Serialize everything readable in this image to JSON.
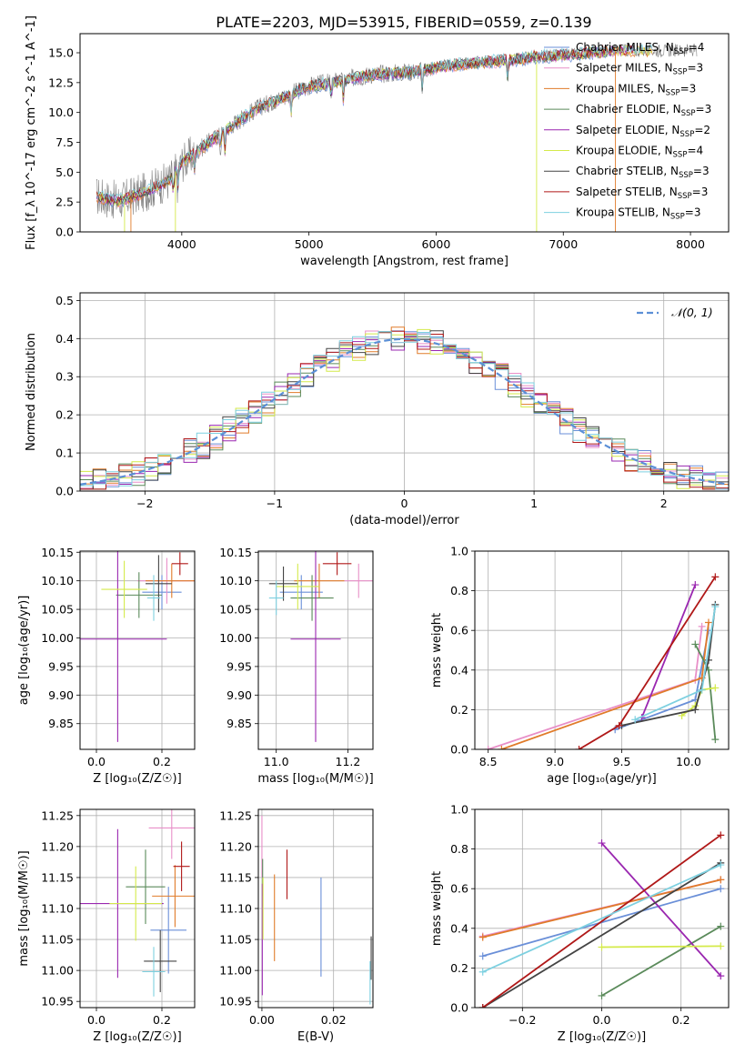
{
  "figure_title": "PLATE=2203, MJD=53915, FIBERID=0559, z=0.139",
  "colors": {
    "Chabrier MILES": "#6a8fd8",
    "Salpeter MILES": "#e88fc8",
    "Kroupa MILES": "#e07b2a",
    "Chabrier ELODIE": "#5a8a5a",
    "Salpeter ELODIE": "#9a27b0",
    "Kroupa ELODIE": "#d4ea4a",
    "Chabrier STELIB": "#444444",
    "Salpeter STELIB": "#b01818",
    "Kroupa STELIB": "#7dd0e0",
    "data": "#808080"
  },
  "chart_data": [
    {
      "type": "line",
      "id": "spectrum",
      "title": "PLATE=2203, MJD=53915, FIBERID=0559, z=0.139",
      "xlabel": "wavelength [Angstrom, rest frame]",
      "ylabel": "Flux [f_λ 10^-17 erg cm^-2 s^-1 A^-1]",
      "xlim": [
        3200,
        8300
      ],
      "ylim": [
        0,
        16.6
      ],
      "xticks": [
        "4000",
        "5000",
        "6000",
        "7000",
        "8000"
      ],
      "yticks": [
        "0.0",
        "2.5",
        "5.0",
        "7.5",
        "10.0",
        "12.5",
        "15.0"
      ],
      "grid": false,
      "legend_placement": "top-right",
      "legend": [
        {
          "base": "Chabrier MILES",
          "sub": "SSP",
          "n": "4"
        },
        {
          "base": "Salpeter MILES",
          "sub": "SSP",
          "n": "3"
        },
        {
          "base": "Kroupa MILES",
          "sub": "SSP",
          "n": "3"
        },
        {
          "base": "Chabrier ELODIE",
          "sub": "SSP",
          "n": "3"
        },
        {
          "base": "Salpeter ELODIE",
          "sub": "SSP",
          "n": "2"
        },
        {
          "base": "Kroupa ELODIE",
          "sub": "SSP",
          "n": "4"
        },
        {
          "base": "Chabrier STELIB",
          "sub": "SSP",
          "n": "3"
        },
        {
          "base": "Salpeter STELIB",
          "sub": "SSP",
          "n": "3"
        },
        {
          "base": "Kroupa STELIB",
          "sub": "SSP",
          "n": "3"
        }
      ],
      "continuum": [
        [
          3330,
          3.0
        ],
        [
          3500,
          2.6
        ],
        [
          3700,
          3.3
        ],
        [
          3900,
          4.3
        ],
        [
          4000,
          5.8
        ],
        [
          4200,
          7.4
        ],
        [
          4400,
          9.0
        ],
        [
          4600,
          10.4
        ],
        [
          4800,
          11.3
        ],
        [
          5000,
          12.2
        ],
        [
          5200,
          12.6
        ],
        [
          5500,
          13.2
        ],
        [
          5800,
          13.4
        ],
        [
          6000,
          13.8
        ],
        [
          6300,
          14.2
        ],
        [
          6600,
          14.4
        ],
        [
          6800,
          14.7
        ],
        [
          7100,
          14.9
        ],
        [
          7400,
          15.2
        ]
      ]
    },
    {
      "type": "step-histogram",
      "id": "residuals",
      "xlabel": "(data-model)/error",
      "ylabel": "Normed distribution",
      "xlim": [
        -2.5,
        2.5
      ],
      "ylim": [
        0,
        0.52
      ],
      "xticks": [
        "−2",
        "−1",
        "0",
        "1",
        "2"
      ],
      "yticks": [
        "0.0",
        "0.1",
        "0.2",
        "0.3",
        "0.4",
        "0.5"
      ],
      "grid": true,
      "legend_placement": "top-right",
      "reference_curve": "N(0,1)",
      "reference_label": "𝒩(0, 1)",
      "bin_width": 0.1
    },
    {
      "type": "errorbar",
      "id": "age-vs-Z",
      "xlabel": "Z [log₁₀(Z/Z☉)]",
      "ylabel": "age  [log₁₀(age/yr)]",
      "xlim": [
        -0.05,
        0.3
      ],
      "ylim": [
        9.805,
        10.152
      ],
      "xticks": [
        "0.0",
        "0.2"
      ],
      "yticks": [
        "9.85",
        "9.90",
        "9.95",
        "10.00",
        "10.05",
        "10.10",
        "10.15"
      ],
      "grid": true,
      "points": [
        {
          "model": "Chabrier MILES",
          "x": 0.2,
          "xerr": 0.06,
          "y": 10.08,
          "yerr": 0.03
        },
        {
          "model": "Salpeter MILES",
          "x": 0.215,
          "xerr": 0.09,
          "y": 10.1,
          "yerr": 0.04
        },
        {
          "model": "Kroupa MILES",
          "x": 0.23,
          "xerr": 0.08,
          "y": 10.1,
          "yerr": 0.03
        },
        {
          "model": "Chabrier ELODIE",
          "x": 0.13,
          "xerr": 0.07,
          "y": 10.075,
          "yerr": 0.04
        },
        {
          "model": "Salpeter ELODIE",
          "x": 0.065,
          "xerr": 0.15,
          "y": 9.998,
          "yerr": 0.18
        },
        {
          "model": "Kroupa ELODIE",
          "x": 0.085,
          "xerr": 0.07,
          "y": 10.085,
          "yerr": 0.05
        },
        {
          "model": "Chabrier STELIB",
          "x": 0.19,
          "xerr": 0.04,
          "y": 10.095,
          "yerr": 0.05
        },
        {
          "model": "Salpeter STELIB",
          "x": 0.255,
          "xerr": 0.025,
          "y": 10.13,
          "yerr": 0.02
        },
        {
          "model": "Kroupa STELIB",
          "x": 0.175,
          "xerr": 0.02,
          "y": 10.07,
          "yerr": 0.04
        }
      ]
    },
    {
      "type": "errorbar",
      "id": "age-vs-mass",
      "xlabel": "mass [log₁₀(M/M☉)]",
      "xlim": [
        10.95,
        11.27
      ],
      "ylim": [
        9.805,
        10.152
      ],
      "xticks": [
        "11.0",
        "11.2"
      ],
      "yticks": [
        "9.85",
        "9.90",
        "9.95",
        "10.00",
        "10.05",
        "10.10",
        "10.15"
      ],
      "grid": true,
      "points": [
        {
          "model": "Chabrier MILES",
          "x": 11.07,
          "xerr": 0.06,
          "y": 10.08,
          "yerr": 0.03
        },
        {
          "model": "Salpeter MILES",
          "x": 11.23,
          "xerr": 0.04,
          "y": 10.1,
          "yerr": 0.03
        },
        {
          "model": "Kroupa MILES",
          "x": 11.12,
          "xerr": 0.07,
          "y": 10.1,
          "yerr": 0.03
        },
        {
          "model": "Chabrier ELODIE",
          "x": 11.1,
          "xerr": 0.06,
          "y": 10.07,
          "yerr": 0.04
        },
        {
          "model": "Salpeter ELODIE",
          "x": 11.11,
          "xerr": 0.07,
          "y": 9.998,
          "yerr": 0.18
        },
        {
          "model": "Kroupa ELODIE",
          "x": 11.06,
          "xerr": 0.06,
          "y": 10.09,
          "yerr": 0.04
        },
        {
          "model": "Chabrier STELIB",
          "x": 11.02,
          "xerr": 0.04,
          "y": 10.095,
          "yerr": 0.03
        },
        {
          "model": "Salpeter STELIB",
          "x": 11.17,
          "xerr": 0.04,
          "y": 10.13,
          "yerr": 0.02
        },
        {
          "model": "Kroupa STELIB",
          "x": 11.0,
          "xerr": 0.02,
          "y": 10.07,
          "yerr": 0.03
        }
      ]
    },
    {
      "type": "line",
      "id": "weight-vs-age",
      "xlabel": "age  [log₁₀(age/yr)]",
      "ylabel": "mass weight",
      "xlim": [
        8.4,
        10.3
      ],
      "ylim": [
        0,
        1.0
      ],
      "xticks": [
        "8.5",
        "9.0",
        "9.5",
        "10.0"
      ],
      "yticks": [
        "0.0",
        "0.2",
        "0.4",
        "0.6",
        "0.8",
        "1.0"
      ],
      "grid": true,
      "series": [
        {
          "name": "Chabrier MILES",
          "x": [
            9.45,
            10.05,
            10.15
          ],
          "y": [
            0.1,
            0.25,
            0.6
          ]
        },
        {
          "name": "Salpeter MILES",
          "x": [
            8.5,
            10.05,
            10.1
          ],
          "y": [
            0.0,
            0.35,
            0.62
          ]
        },
        {
          "name": "Kroupa MILES",
          "x": [
            8.6,
            10.1,
            10.15
          ],
          "y": [
            0.0,
            0.36,
            0.64
          ]
        },
        {
          "name": "Chabrier ELODIE",
          "x": [
            10.05,
            10.15,
            10.2
          ],
          "y": [
            0.53,
            0.4,
            0.05
          ]
        },
        {
          "name": "Salpeter ELODIE",
          "x": [
            9.65,
            10.05
          ],
          "y": [
            0.16,
            0.83
          ]
        },
        {
          "name": "Kroupa ELODIE",
          "x": [
            9.95,
            10.05,
            10.1,
            10.2
          ],
          "y": [
            0.17,
            0.22,
            0.3,
            0.31
          ]
        },
        {
          "name": "Chabrier STELIB",
          "x": [
            9.5,
            10.05,
            10.15,
            10.2
          ],
          "y": [
            0.12,
            0.2,
            0.45,
            0.73
          ]
        },
        {
          "name": "Salpeter STELIB",
          "x": [
            9.18,
            9.48,
            10.2
          ],
          "y": [
            0.0,
            0.12,
            0.87
          ]
        },
        {
          "name": "Kroupa STELIB",
          "x": [
            9.6,
            10.1,
            10.2
          ],
          "y": [
            0.15,
            0.3,
            0.72
          ]
        }
      ]
    },
    {
      "type": "errorbar",
      "id": "mass-vs-Z",
      "xlabel": "Z [log₁₀(Z/Z☉)]",
      "ylabel": "mass [log₁₀(M/M☉)]",
      "xlim": [
        -0.05,
        0.3
      ],
      "ylim": [
        10.94,
        11.26
      ],
      "xticks": [
        "0.0",
        "0.2"
      ],
      "yticks": [
        "10.95",
        "11.00",
        "11.05",
        "11.10",
        "11.15",
        "11.20",
        "11.25"
      ],
      "grid": true,
      "points": [
        {
          "model": "Chabrier MILES",
          "x": 0.22,
          "xerr": 0.055,
          "y": 11.065,
          "yerr": 0.07
        },
        {
          "model": "Salpeter MILES",
          "x": 0.23,
          "xerr": 0.07,
          "y": 11.23,
          "yerr": 0.05
        },
        {
          "model": "Kroupa MILES",
          "x": 0.24,
          "xerr": 0.07,
          "y": 11.12,
          "yerr": 0.05
        },
        {
          "model": "Chabrier ELODIE",
          "x": 0.15,
          "xerr": 0.06,
          "y": 11.135,
          "yerr": 0.06
        },
        {
          "model": "Salpeter ELODIE",
          "x": 0.065,
          "xerr": 0.14,
          "y": 11.108,
          "yerr": 0.12
        },
        {
          "model": "Kroupa ELODIE",
          "x": 0.12,
          "xerr": 0.08,
          "y": 11.108,
          "yerr": 0.06
        },
        {
          "model": "Chabrier STELIB",
          "x": 0.195,
          "xerr": 0.05,
          "y": 11.015,
          "yerr": 0.05
        },
        {
          "model": "Salpeter STELIB",
          "x": 0.26,
          "xerr": 0.025,
          "y": 11.168,
          "yerr": 0.04
        },
        {
          "model": "Kroupa STELIB",
          "x": 0.175,
          "xerr": 0.035,
          "y": 10.998,
          "yerr": 0.04
        }
      ]
    },
    {
      "type": "errorbar",
      "id": "mass-vs-EBV",
      "xlabel": "E(B-V)",
      "xlim": [
        -0.001,
        0.031
      ],
      "ylim": [
        10.94,
        11.26
      ],
      "xticks": [
        "0.00",
        "0.02"
      ],
      "yticks": [
        "10.95",
        "11.00",
        "11.05",
        "11.10",
        "11.15",
        "11.20",
        "11.25"
      ],
      "grid": true,
      "points": [
        {
          "model": "Chabrier MILES",
          "x": 0.0165,
          "xerr": 0,
          "y": 11.07,
          "yerr": 0.08
        },
        {
          "model": "Salpeter MILES",
          "x": 0.0,
          "xerr": 0,
          "y": 11.2,
          "yerr": 0.05
        },
        {
          "model": "Kroupa MILES",
          "x": 0.0035,
          "xerr": 0,
          "y": 11.085,
          "yerr": 0.07
        },
        {
          "model": "Chabrier ELODIE",
          "x": 0.0002,
          "xerr": 0,
          "y": 11.15,
          "yerr": 0.03
        },
        {
          "model": "Salpeter ELODIE",
          "x": 0.0001,
          "xerr": 0,
          "y": 11.05,
          "yerr": 0.09
        },
        {
          "model": "Kroupa ELODIE",
          "x": 0.0003,
          "xerr": 0,
          "y": 11.1,
          "yerr": 0.05
        },
        {
          "model": "Chabrier STELIB",
          "x": 0.0305,
          "xerr": 0,
          "y": 11.02,
          "yerr": 0.035
        },
        {
          "model": "Salpeter STELIB",
          "x": 0.007,
          "xerr": 0,
          "y": 11.155,
          "yerr": 0.04
        },
        {
          "model": "Kroupa STELIB",
          "x": 0.0302,
          "xerr": 0,
          "y": 10.98,
          "yerr": 0.035
        }
      ]
    },
    {
      "type": "line",
      "id": "weight-vs-Z",
      "xlabel": "Z [log₁₀(Z/Z☉)]",
      "ylabel": "mass weight",
      "xlim": [
        -0.32,
        0.32
      ],
      "ylim": [
        0,
        1.0
      ],
      "xticks": [
        "−0.2",
        "0.0",
        "0.2"
      ],
      "yticks": [
        "0.0",
        "0.2",
        "0.4",
        "0.6",
        "0.8",
        "1.0"
      ],
      "grid": true,
      "series": [
        {
          "name": "Chabrier MILES",
          "x": [
            -0.3,
            0.3
          ],
          "y": [
            0.26,
            0.6
          ]
        },
        {
          "name": "Salpeter MILES",
          "x": [
            -0.3,
            0.3
          ],
          "y": [
            0.36,
            0.645
          ]
        },
        {
          "name": "Kroupa MILES",
          "x": [
            -0.3,
            0.3
          ],
          "y": [
            0.355,
            0.645
          ]
        },
        {
          "name": "Chabrier ELODIE",
          "x": [
            0.0,
            0.3
          ],
          "y": [
            0.06,
            0.41
          ]
        },
        {
          "name": "Salpeter ELODIE",
          "x": [
            0.0,
            0.3
          ],
          "y": [
            0.83,
            0.16
          ]
        },
        {
          "name": "Kroupa ELODIE",
          "x": [
            0.0,
            0.3
          ],
          "y": [
            0.305,
            0.31
          ]
        },
        {
          "name": "Chabrier STELIB",
          "x": [
            -0.3,
            0.3
          ],
          "y": [
            0.0,
            0.73
          ]
        },
        {
          "name": "Salpeter STELIB",
          "x": [
            -0.3,
            0.3
          ],
          "y": [
            0.0,
            0.87
          ]
        },
        {
          "name": "Kroupa STELIB",
          "x": [
            -0.3,
            0.3
          ],
          "y": [
            0.18,
            0.72
          ]
        }
      ]
    }
  ]
}
